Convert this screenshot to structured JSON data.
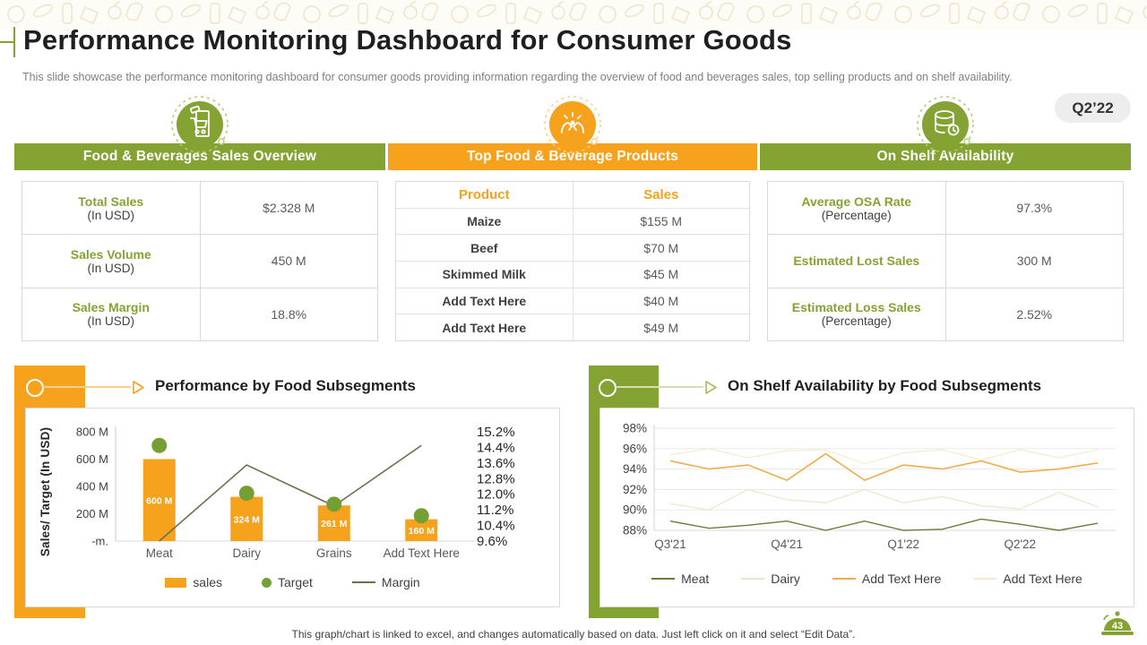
{
  "slide": {
    "title": "Performance Monitoring Dashboard for Consumer Goods",
    "subtitle": "This slide showcase the performance monitoring dashboard for consumer goods providing information regarding the overview of food and beverages sales, top selling products and on shelf availability.",
    "period_badge": "Q2’22",
    "footer_note": "This graph/chart is linked to excel, and changes automatically based on data. Just left click on it and select “Edit Data”.",
    "page_number": "43"
  },
  "panels": {
    "sales_overview": {
      "title": "Food & Beverages Sales Overview",
      "icon": "shopping-cart-icon",
      "rows": [
        {
          "label": "Total Sales",
          "sublabel": "(In USD)",
          "value": "$2.328 M"
        },
        {
          "label": "Sales Volume",
          "sublabel": "(In USD)",
          "value": "450 M"
        },
        {
          "label": "Sales Margin",
          "sublabel": "(In USD)",
          "value": "18.8%"
        }
      ]
    },
    "top_products": {
      "title": "Top Food & Beverage Products",
      "icon": "hands-presenting-icon",
      "columns": [
        "Product",
        "Sales"
      ],
      "rows": [
        {
          "product": "Maize",
          "sales": "$155 M"
        },
        {
          "product": "Beef",
          "sales": "$70 M"
        },
        {
          "product": "Skimmed Milk",
          "sales": "$45 M"
        },
        {
          "product": "Add Text Here",
          "sales": "$40 M"
        },
        {
          "product": "Add Text Here",
          "sales": "$49 M"
        }
      ]
    },
    "shelf_availability": {
      "title": "On Shelf Availability",
      "icon": "database-clock-icon",
      "rows": [
        {
          "label": "Average OSA Rate",
          "sublabel": "(Percentage)",
          "value": "97.3%"
        },
        {
          "label": "Estimated Lost Sales",
          "sublabel": "",
          "value": "300 M"
        },
        {
          "label": "Estimated Loss Sales",
          "sublabel": "(Percentage)",
          "value": "2.52%"
        }
      ]
    }
  },
  "chart_data": [
    {
      "type": "bar",
      "title": "Performance by Food Subsegments",
      "categories": [
        "Meat",
        "Dairy",
        "Grains",
        "Add Text Here"
      ],
      "series": [
        {
          "name": "sales",
          "kind": "bar",
          "values": [
            600,
            324,
            261,
            160
          ],
          "labels": [
            "600 M",
            "324 M",
            "261 M",
            "160 M"
          ],
          "color": "#F6A21D"
        },
        {
          "name": "Target",
          "kind": "point",
          "values": [
            700,
            350,
            270,
            185
          ],
          "color": "#74A033"
        },
        {
          "name": "Margin",
          "kind": "line",
          "axis": "right",
          "values": [
            9.6,
            13.5,
            11.4,
            14.5
          ],
          "color": "#6F6F4D"
        }
      ],
      "ylabel": "Sales/ Target (In USD)",
      "y_left": {
        "ticks": [
          "800 M",
          "600 M",
          "400 M",
          "200 M",
          "-m."
        ],
        "min": 0,
        "max": 800
      },
      "y_right": {
        "ticks": [
          "15.2%",
          "14.4%",
          "13.6%",
          "12.8%",
          "12.0%",
          "11.2%",
          "10.4%",
          "9.6%"
        ],
        "min": 9.6,
        "max": 15.2
      },
      "legend_position": "bottom",
      "grid": false
    },
    {
      "type": "line",
      "title": "On Shelf Availability by Food Subsegments",
      "x_tick_labels": [
        "Q3'21",
        "Q4'21",
        "Q1'22",
        "Q2'22"
      ],
      "points_per_series": 12,
      "ylim": [
        88,
        98
      ],
      "y_ticks": [
        "98%",
        "96%",
        "94%",
        "92%",
        "90%",
        "88%"
      ],
      "grid": true,
      "legend_position": "bottom",
      "series": [
        {
          "name": "Meat",
          "color": "#6C7C3B",
          "values": [
            88.9,
            88.2,
            88.5,
            88.9,
            88.0,
            88.9,
            88.0,
            88.1,
            89.1,
            88.6,
            88.0,
            88.7
          ]
        },
        {
          "name": "Dairy",
          "color": "#EDE4CF",
          "values": [
            90.6,
            90.0,
            92.0,
            91.0,
            90.7,
            92.0,
            90.7,
            91.3,
            90.4,
            90.1,
            91.7,
            90.3
          ]
        },
        {
          "name": "Add Text Here",
          "color": "#F0AC49",
          "values": [
            94.8,
            94.0,
            94.4,
            92.9,
            95.5,
            92.9,
            94.4,
            94.0,
            94.8,
            93.7,
            94.0,
            94.6
          ]
        },
        {
          "name": "Add Text Here",
          "color": "#F6EACC",
          "values": [
            95.4,
            96.0,
            95.1,
            95.8,
            95.9,
            94.5,
            95.6,
            95.9,
            94.9,
            95.9,
            95.1,
            95.9
          ]
        }
      ]
    }
  ],
  "colors": {
    "olive_green": "#84A333",
    "orange": "#F6A21D",
    "value_text": "#595959",
    "title_text": "#1F1F1F",
    "subtitle_text": "#7F7F7F",
    "border": "#D9D9D9",
    "badge_bg": "#EDEDED"
  }
}
